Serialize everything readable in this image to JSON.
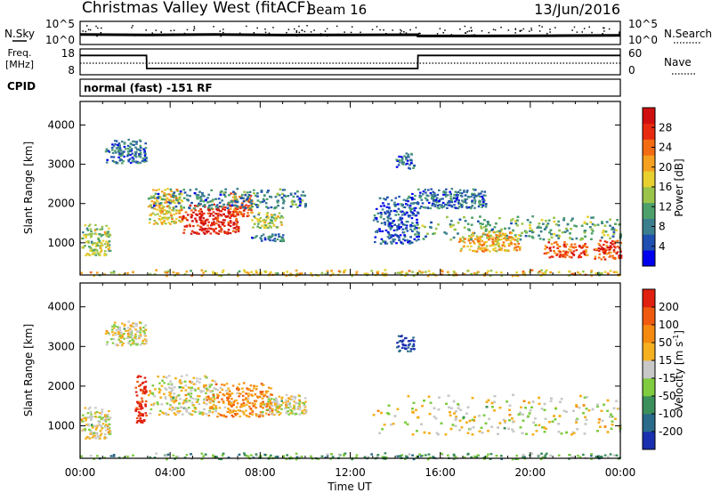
{
  "header": {
    "title": "Christmas Valley West (fitACF)",
    "beam": "Beam 16",
    "date": "13/Jun/2016"
  },
  "nsky_panel": {
    "label": "N.Sky",
    "y_ticks": [
      "10^5",
      "10^0"
    ],
    "right_label": "N.Search",
    "right_ticks": [
      "10^5",
      "10^0"
    ]
  },
  "freq_panel": {
    "label_line1": "Freq.",
    "label_line2": "[MHz]",
    "y_ticks": [
      "18",
      "8"
    ],
    "right_label": "Nave",
    "right_ticks": [
      "60",
      "0"
    ],
    "cpid_label": "CPID",
    "cpid_text": "normal (fast) -151 RF"
  },
  "chart_data": [
    {
      "type": "line",
      "name": "nsky-noise",
      "x_unit": "hours UT",
      "y_scale": "log",
      "ylim": [
        1,
        100000
      ],
      "description_values": "noise level trace",
      "x": [
        0,
        3,
        6,
        9,
        12,
        15,
        15.01,
        18,
        21,
        24
      ],
      "y": [
        150,
        120,
        140,
        110,
        120,
        130,
        70,
        70,
        80,
        90
      ]
    },
    {
      "type": "line",
      "name": "frequency",
      "ylim": [
        8,
        18
      ],
      "x": [
        0,
        2.95,
        2.96,
        15.0,
        15.01,
        24
      ],
      "y": [
        15.5,
        15.5,
        10.4,
        10.4,
        15.5,
        15.5
      ],
      "nave_dotted": 12.5
    },
    {
      "type": "heatmap",
      "name": "power",
      "ylabel": "Slant Range [km]",
      "xlim": [
        0,
        24
      ],
      "ylim": [
        180,
        4600
      ],
      "y_ticks": [
        "1000",
        "2000",
        "3000",
        "4000"
      ],
      "colorbar": {
        "label": "Power [dB]",
        "ticks": [
          "4",
          "8",
          "12",
          "16",
          "20",
          "24",
          "28"
        ],
        "colors": [
          "#0000ee",
          "#1f4fb0",
          "#3b7f8e",
          "#4da06a",
          "#9bc44a",
          "#e8d030",
          "#f5a020",
          "#f36b13",
          "#e82a10",
          "#d01010"
        ]
      },
      "regions": [
        {
          "t0": 0.0,
          "t1": 1.3,
          "r0": 700,
          "r1": 1500,
          "level": 0.45
        },
        {
          "t0": 1.1,
          "t1": 2.9,
          "r0": 3050,
          "r1": 3650,
          "level": 0.2
        },
        {
          "t0": 3.0,
          "t1": 4.5,
          "r0": 1500,
          "r1": 2400,
          "level": 0.55
        },
        {
          "t0": 4.5,
          "t1": 7.0,
          "r0": 1250,
          "r1": 2000,
          "level": 0.88
        },
        {
          "t0": 6.5,
          "t1": 7.6,
          "r0": 1700,
          "r1": 2300,
          "level": 0.75
        },
        {
          "t0": 7.6,
          "t1": 9.0,
          "r0": 1400,
          "r1": 1800,
          "level": 0.45
        },
        {
          "t0": 7.5,
          "t1": 9.0,
          "r0": 1050,
          "r1": 1250,
          "level": 0.2
        },
        {
          "t0": 3.0,
          "t1": 10.0,
          "r0": 1900,
          "r1": 2400,
          "level": 0.25
        },
        {
          "t0": 14.0,
          "t1": 14.8,
          "r0": 2900,
          "r1": 3300,
          "level": 0.2
        },
        {
          "t0": 13.0,
          "t1": 15.0,
          "r0": 1000,
          "r1": 2200,
          "level": 0.15
        },
        {
          "t0": 14.5,
          "t1": 18.0,
          "r0": 1900,
          "r1": 2400,
          "level": 0.2
        },
        {
          "t0": 15.0,
          "t1": 24.0,
          "r0": 1100,
          "r1": 1700,
          "level": 0.35
        },
        {
          "t0": 16.8,
          "t1": 19.5,
          "r0": 800,
          "r1": 1300,
          "level": 0.6
        },
        {
          "t0": 20.5,
          "t1": 22.5,
          "r0": 650,
          "r1": 1050,
          "level": 0.78
        },
        {
          "t0": 22.8,
          "t1": 24.0,
          "r0": 600,
          "r1": 1100,
          "level": 0.8
        },
        {
          "t0": 0.0,
          "t1": 24.0,
          "r0": 180,
          "r1": 330,
          "level": 0.55
        }
      ]
    },
    {
      "type": "heatmap",
      "name": "velocity",
      "ylabel": "Slant Range [km]",
      "xlabel": "Time UT",
      "xlim": [
        0,
        24
      ],
      "ylim": [
        180,
        4600
      ],
      "x_ticks": [
        "00:00",
        "04:00",
        "08:00",
        "12:00",
        "16:00",
        "20:00",
        "00:00"
      ],
      "y_ticks": [
        "1000",
        "2000",
        "3000",
        "4000"
      ],
      "colorbar": {
        "label": "Velocity [m s^-1]",
        "ticks": [
          "200",
          "100",
          "50",
          "15",
          "-15",
          "-50",
          "-100",
          "-200"
        ],
        "colors": [
          "#1a2fb0",
          "#2a6a8a",
          "#3b8f5a",
          "#7fcc40",
          "#c8c8c8",
          "#f5b020",
          "#f58a10",
          "#f05a10",
          "#e02010"
        ]
      },
      "regions": [
        {
          "t0": 0.0,
          "t1": 1.3,
          "r0": 700,
          "r1": 1500,
          "level": 0.5
        },
        {
          "t0": 1.1,
          "t1": 2.9,
          "r0": 3050,
          "r1": 3650,
          "level": 0.5
        },
        {
          "t0": 3.0,
          "t1": 6.0,
          "r0": 1300,
          "r1": 2300,
          "level": 0.5
        },
        {
          "t0": 5.6,
          "t1": 8.5,
          "r0": 1250,
          "r1": 2100,
          "level": 0.68
        },
        {
          "t0": 2.4,
          "t1": 2.9,
          "r0": 1100,
          "r1": 2300,
          "level": 0.95
        },
        {
          "t0": 8.0,
          "t1": 10.0,
          "r0": 1300,
          "r1": 1800,
          "level": 0.5
        },
        {
          "t0": 14.0,
          "t1": 14.8,
          "r0": 2900,
          "r1": 3300,
          "level": 0.05
        },
        {
          "t0": 13.0,
          "t1": 24.0,
          "r0": 800,
          "r1": 1800,
          "level": 0.5
        },
        {
          "t0": 0.0,
          "t1": 24.0,
          "r0": 180,
          "r1": 330,
          "level": 0.32
        }
      ]
    }
  ]
}
